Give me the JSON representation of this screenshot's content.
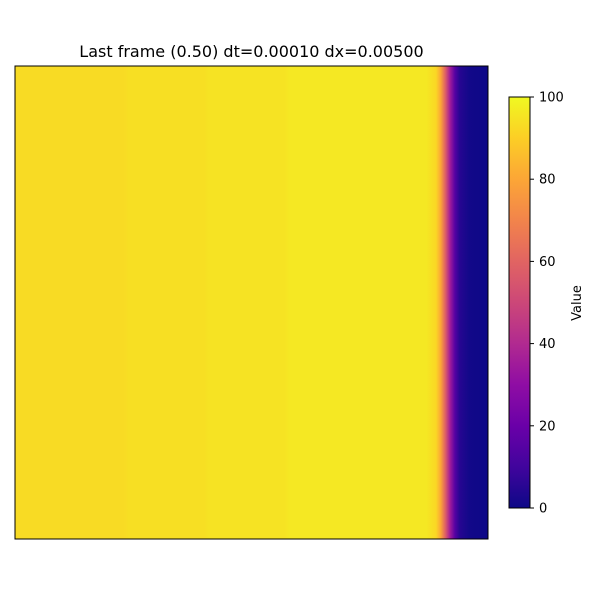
{
  "chart_data": {
    "type": "heatmap",
    "title": "Last frame (0.50) dt=0.00010 dx=0.00500",
    "xlabel": "",
    "ylabel": "",
    "colormap": "plasma",
    "axes_ticks_visible": false,
    "colorbar": {
      "label": "Value",
      "range": [
        0,
        100
      ],
      "ticks": [
        "0",
        "20",
        "40",
        "60",
        "80",
        "100"
      ],
      "tick_values": [
        0,
        20,
        40,
        60,
        80,
        100
      ]
    },
    "field_profile": {
      "description_axis": "horizontal",
      "x": [
        0.0,
        0.23,
        0.24,
        0.4,
        0.41,
        0.57,
        0.58,
        0.87,
        0.89,
        0.9,
        0.91,
        0.92,
        0.93,
        0.94,
        0.96,
        1.0
      ],
      "values": [
        93,
        93,
        94,
        94,
        95,
        95,
        96,
        96,
        92,
        80,
        58,
        35,
        15,
        5,
        1,
        0
      ]
    }
  }
}
